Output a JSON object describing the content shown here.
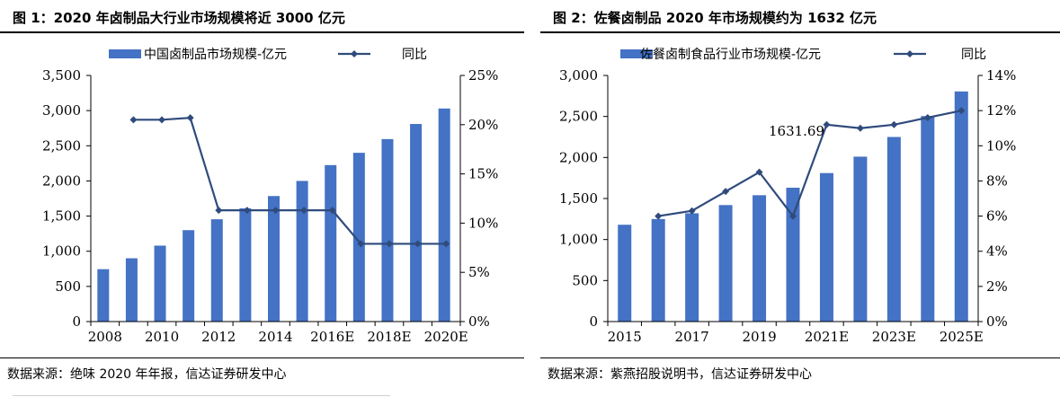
{
  "left": {
    "title": "图 1：2020 年卤制品大行业市场规模将近 3000 亿元",
    "source": "数据来源：绝味 2020 年年报，信达证券研发中心"
  },
  "right": {
    "title": "图 2：佐餐卤制品 2020 年市场规模约为 1632 亿元",
    "source": "数据来源：紫燕招股说明书，信达证券研发中心"
  },
  "colors": {
    "bar": "#4472C4",
    "line": "#2F4B7C"
  },
  "chart_data": [
    {
      "type": "bar",
      "categories": [
        "2008",
        "2009",
        "2010",
        "2011",
        "2012",
        "2013",
        "2014",
        "2015",
        "2016E",
        "2017E",
        "2018E",
        "2019E",
        "2020E"
      ],
      "series": [
        {
          "name": "中国卤制品市场规模-亿元",
          "type": "bar",
          "axis": "left",
          "values": [
            745,
            900,
            1080,
            1300,
            1455,
            1610,
            1785,
            2000,
            2225,
            2400,
            2595,
            2810,
            3030
          ]
        },
        {
          "name": "同比",
          "type": "line",
          "axis": "right",
          "values": [
            null,
            20.5,
            20.5,
            20.7,
            11.3,
            11.3,
            11.3,
            11.3,
            11.3,
            7.9,
            7.9,
            7.9,
            7.9
          ]
        }
      ],
      "xticks": [
        "2008",
        "2010",
        "2012",
        "2014",
        "2016E",
        "2018E",
        "2020E"
      ],
      "ylim": [
        0,
        3500
      ],
      "yticks": [
        "0",
        "500",
        "1,000",
        "1,500",
        "2,000",
        "2,500",
        "3,000",
        "3,500"
      ],
      "y2lim": [
        0,
        25
      ],
      "y2ticks": [
        "0%",
        "5%",
        "10%",
        "15%",
        "20%",
        "25%"
      ],
      "legend": "top",
      "grid": false
    },
    {
      "type": "bar",
      "categories": [
        "2015",
        "2016",
        "2017",
        "2018",
        "2019",
        "2020",
        "2021E",
        "2022E",
        "2023E",
        "2024E",
        "2025E"
      ],
      "series": [
        {
          "name": "佐餐卤制食品行业市场规模-亿元",
          "type": "bar",
          "axis": "left",
          "values": [
            1180,
            1250,
            1320,
            1420,
            1540,
            1631.69,
            1810,
            2010,
            2250,
            2505,
            2805
          ]
        },
        {
          "name": "同比",
          "type": "line",
          "axis": "right",
          "values": [
            null,
            6.0,
            6.3,
            7.4,
            8.5,
            6.0,
            11.2,
            11.0,
            11.2,
            11.6,
            12.0
          ]
        }
      ],
      "annotation": {
        "category": "2020",
        "text": "1631.69"
      },
      "xticks": [
        "2015",
        "2017",
        "2019",
        "2021E",
        "2023E",
        "2025E"
      ],
      "ylim": [
        0,
        3000
      ],
      "yticks": [
        "0",
        "500",
        "1,000",
        "1,500",
        "2,000",
        "2,500",
        "3,000"
      ],
      "y2lim": [
        0,
        14
      ],
      "y2ticks": [
        "0%",
        "2%",
        "4%",
        "6%",
        "8%",
        "10%",
        "12%",
        "14%"
      ],
      "legend": "top",
      "grid": false
    }
  ]
}
